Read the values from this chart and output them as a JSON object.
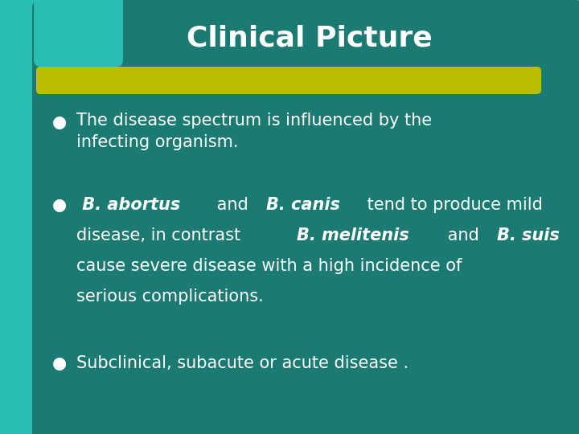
{
  "title": "Clinical Picture",
  "title_fontsize": 26,
  "title_color": "#FFFFFF",
  "bg_color_outer": "#29BCB0",
  "bg_color_main": "#1B7A72",
  "accent_bar_color": "#BCBC00",
  "text_color": "#FFFFFF",
  "bullet_symbol": "●",
  "bullet1": "The disease spectrum is influenced by the\ninfecting organism.",
  "bullet3": "Subclinical, subacute or acute disease .",
  "font_size_bullets": 15,
  "font_size_bullet_dot": 13
}
